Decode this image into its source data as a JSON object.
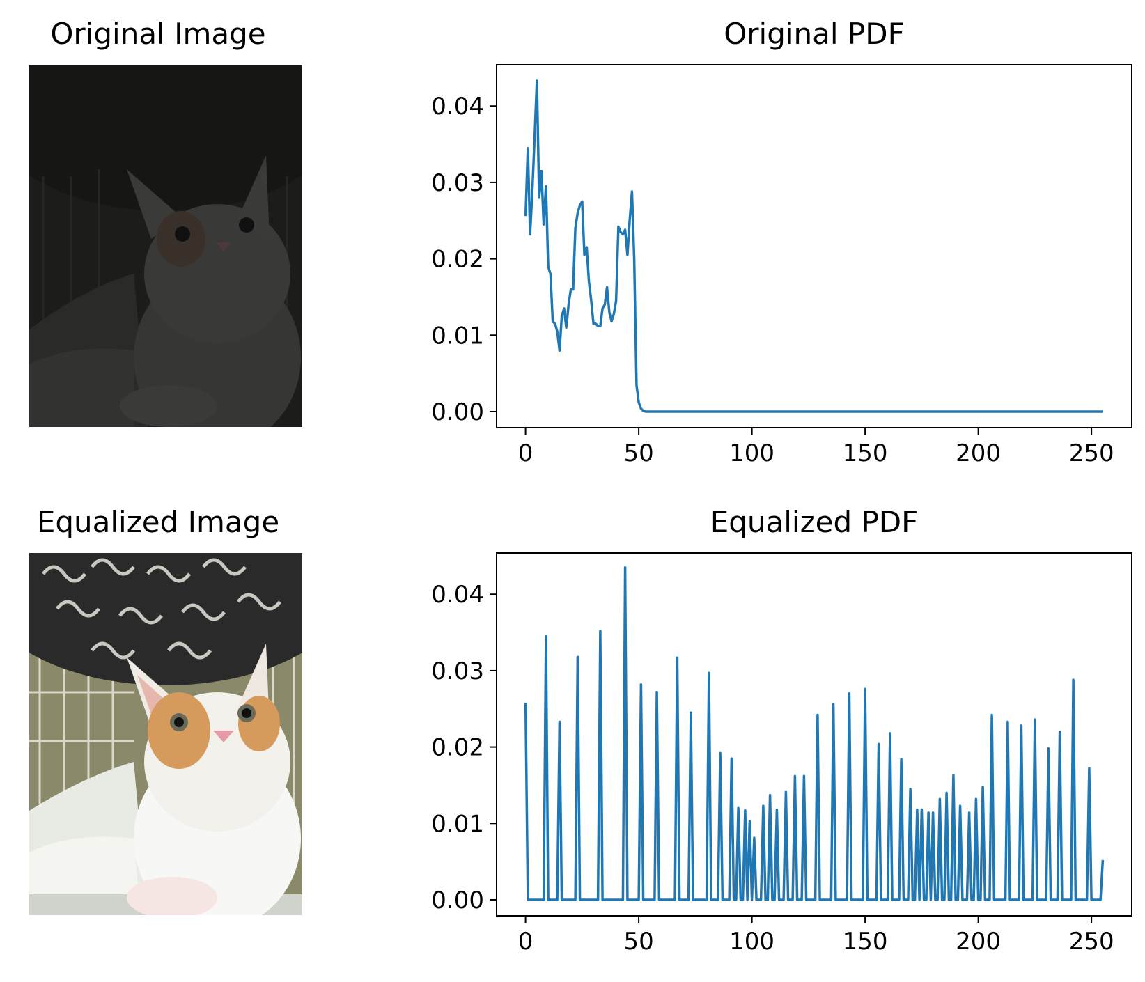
{
  "titles": {
    "original_image": "Original Image",
    "equalized_image": "Equalized Image",
    "original_pdf": "Original PDF",
    "equalized_pdf": "Equalized PDF"
  },
  "colors": {
    "line": "#1f77b4"
  },
  "chart_data": [
    {
      "type": "line",
      "title": "Original PDF",
      "xlabel": "",
      "ylabel": "",
      "xlim": [
        -12.8,
        267.8
      ],
      "ylim": [
        -0.0021,
        0.0454
      ],
      "xticks": [
        0,
        50,
        100,
        150,
        200,
        250
      ],
      "yticks": [
        0.0,
        0.01,
        0.02,
        0.03,
        0.04
      ],
      "ytick_labels": [
        "0.00",
        "0.01",
        "0.02",
        "0.03",
        "0.04"
      ],
      "grid": false,
      "series": [
        {
          "x": [
            0,
            1,
            2,
            3,
            4,
            5,
            6,
            7,
            8,
            9,
            10,
            11,
            12,
            13,
            14,
            15,
            16,
            17,
            18,
            19,
            20,
            21,
            22,
            23,
            24,
            25,
            26,
            27,
            28,
            29,
            30,
            31,
            32,
            33,
            34,
            35,
            36,
            37,
            38,
            39,
            40,
            41,
            42,
            43,
            44,
            45,
            46,
            47,
            48,
            49,
            50,
            51,
            52,
            53,
            54,
            255
          ],
          "y": [
            0.0256,
            0.0345,
            0.0232,
            0.029,
            0.036,
            0.0433,
            0.028,
            0.0315,
            0.0245,
            0.0295,
            0.019,
            0.018,
            0.0118,
            0.0115,
            0.0105,
            0.008,
            0.0125,
            0.0135,
            0.011,
            0.014,
            0.016,
            0.016,
            0.024,
            0.026,
            0.027,
            0.0275,
            0.0205,
            0.0215,
            0.017,
            0.0145,
            0.0115,
            0.0115,
            0.0112,
            0.0112,
            0.0135,
            0.014,
            0.0163,
            0.013,
            0.0118,
            0.0128,
            0.0145,
            0.0242,
            0.0235,
            0.0232,
            0.0238,
            0.0205,
            0.025,
            0.0288,
            0.02,
            0.0035,
            0.0012,
            0.0004,
            0.0001,
            0.0,
            0.0,
            0.0
          ]
        }
      ]
    },
    {
      "type": "line",
      "title": "Equalized PDF",
      "xlabel": "",
      "ylabel": "",
      "xlim": [
        -12.8,
        267.8
      ],
      "ylim": [
        -0.0021,
        0.0454
      ],
      "xticks": [
        0,
        50,
        100,
        150,
        200,
        250
      ],
      "yticks": [
        0.0,
        0.01,
        0.02,
        0.03,
        0.04
      ],
      "ytick_labels": [
        "0.00",
        "0.01",
        "0.02",
        "0.03",
        "0.04"
      ],
      "grid": false,
      "series": [
        {
          "spike_x": [
            0,
            9,
            15,
            23,
            33,
            44,
            51,
            58,
            67,
            73,
            81,
            86,
            91,
            94,
            97,
            99,
            101,
            105,
            108,
            111,
            115,
            119,
            123,
            129,
            136,
            143,
            150,
            156,
            161,
            166,
            170,
            173,
            175,
            178,
            180,
            183,
            186,
            189,
            192,
            196,
            199,
            202,
            206,
            213,
            219,
            225,
            231,
            236,
            242,
            249,
            255
          ],
          "spike_y": [
            0.0258,
            0.0345,
            0.0233,
            0.0318,
            0.0352,
            0.0435,
            0.0282,
            0.0272,
            0.0317,
            0.0245,
            0.0297,
            0.0192,
            0.0185,
            0.012,
            0.0117,
            0.0103,
            0.0081,
            0.0123,
            0.0137,
            0.0118,
            0.0141,
            0.0162,
            0.0162,
            0.0242,
            0.0256,
            0.027,
            0.0276,
            0.0204,
            0.0218,
            0.0184,
            0.0145,
            0.0118,
            0.0118,
            0.0114,
            0.0114,
            0.0132,
            0.014,
            0.0163,
            0.0123,
            0.0114,
            0.0132,
            0.0148,
            0.0242,
            0.0233,
            0.0228,
            0.0236,
            0.0198,
            0.022,
            0.0288,
            0.0172,
            0.0052
          ],
          "x_max": 256
        }
      ]
    }
  ]
}
